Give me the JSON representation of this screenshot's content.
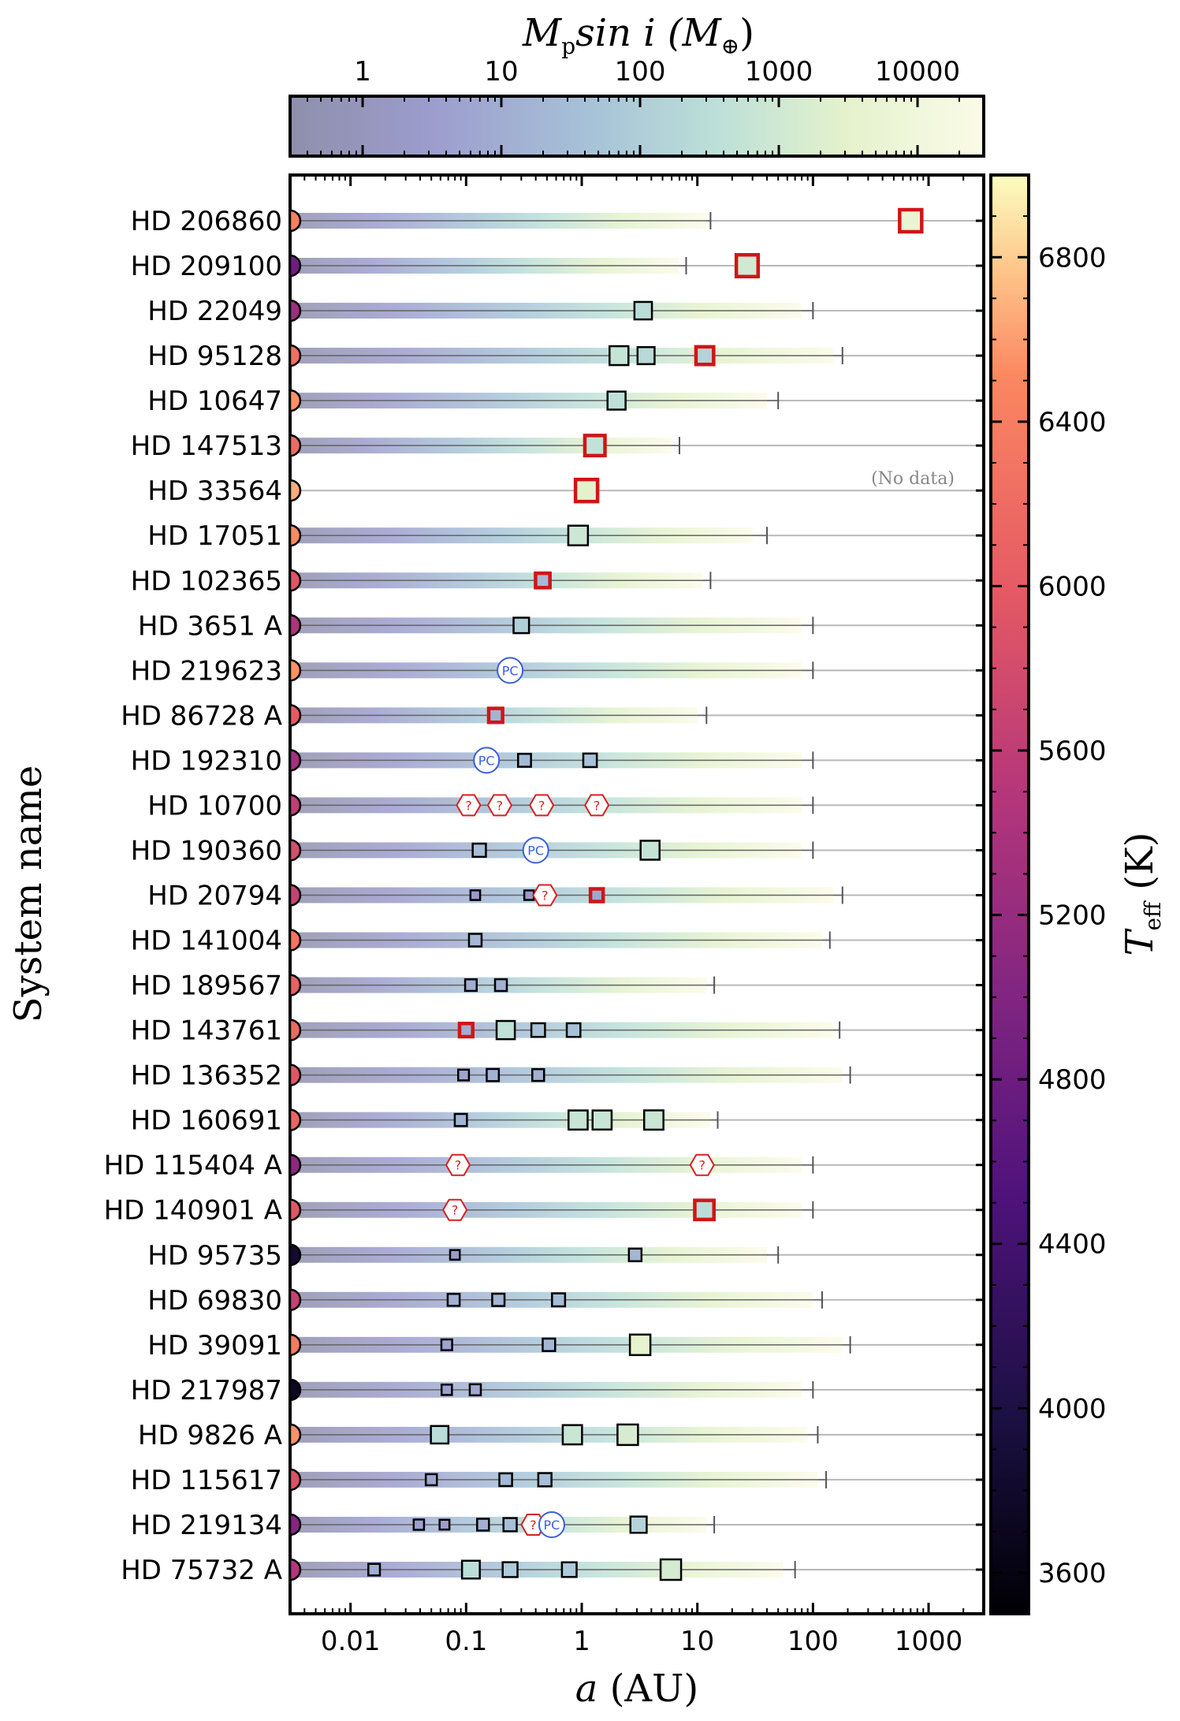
{
  "chart_data": {
    "type": "scatter",
    "title": "",
    "xlabel": "a (AU)",
    "ylabel": "System name",
    "x_scale": "log",
    "xlim": [
      0.003,
      3000
    ],
    "x_ticks": [
      {
        "value": 0.01,
        "label": "0.01"
      },
      {
        "value": 0.1,
        "label": "0.1"
      },
      {
        "value": 1,
        "label": "1"
      },
      {
        "value": 10,
        "label": "10"
      },
      {
        "value": 100,
        "label": "100"
      },
      {
        "value": 1000,
        "label": "1000"
      }
    ],
    "mass_colorbar": {
      "label": "M_p sin i (M_⊕)",
      "label_main": "M",
      "label_sub": "p",
      "label_rest": "sin i (M",
      "label_sym": "⊕",
      "label_end": ")",
      "scale": "log",
      "range": [
        0.3,
        30000
      ],
      "ticks": [
        {
          "value": 1,
          "label": "1"
        },
        {
          "value": 10,
          "label": "10"
        },
        {
          "value": 100,
          "label": "100"
        },
        {
          "value": 1000,
          "label": "1000"
        },
        {
          "value": 10000,
          "label": "10000"
        }
      ],
      "colors": [
        "#8f8fab",
        "#9c9ccd",
        "#a8c5d8",
        "#bde0d8",
        "#e4f2cc",
        "#fbfbe8"
      ]
    },
    "teff_colorbar": {
      "label": "T_eff (K)",
      "label_main": "T",
      "label_sub": "eff",
      "label_rest": " (K)",
      "range": [
        3500,
        7000
      ],
      "ticks": [
        {
          "value": 3600,
          "label": "3600"
        },
        {
          "value": 4000,
          "label": "4000"
        },
        {
          "value": 4400,
          "label": "4400"
        },
        {
          "value": 4800,
          "label": "4800"
        },
        {
          "value": 5200,
          "label": "5200"
        },
        {
          "value": 5600,
          "label": "5600"
        },
        {
          "value": 6000,
          "label": "6000"
        },
        {
          "value": 6400,
          "label": "6400"
        },
        {
          "value": 6800,
          "label": "6800"
        }
      ]
    },
    "legend_note": "(No data)",
    "marker_labels": {
      "pc": "PC",
      "unconfirmed": "?"
    },
    "systems": [
      {
        "name": "HD 206860",
        "teff": 6060,
        "bar_end": 12,
        "line_end": 13,
        "planets": [
          {
            "a": 700,
            "mass": 5000,
            "type": "imaged"
          }
        ]
      },
      {
        "name": "HD 209100",
        "teff": 4650,
        "bar_end": 7,
        "line_end": 8,
        "planets": [
          {
            "a": 27,
            "mass": 1000,
            "type": "imaged"
          }
        ]
      },
      {
        "name": "HD 22049",
        "teff": 5050,
        "bar_end": 80,
        "line_end": 100,
        "planets": [
          {
            "a": 3.4,
            "mass": 220,
            "type": "rv"
          }
        ]
      },
      {
        "name": "HD 95128",
        "teff": 5900,
        "bar_end": 150,
        "line_end": 180,
        "planets": [
          {
            "a": 2.1,
            "mass": 480,
            "type": "rv"
          },
          {
            "a": 3.6,
            "mass": 170,
            "type": "rv"
          },
          {
            "a": 11.6,
            "mass": 100,
            "type": "imaged"
          }
        ]
      },
      {
        "name": "HD 10647",
        "teff": 6200,
        "bar_end": 40,
        "line_end": 50,
        "planets": [
          {
            "a": 2.0,
            "mass": 300,
            "type": "rv"
          }
        ]
      },
      {
        "name": "HD 147513",
        "teff": 5850,
        "bar_end": 6,
        "line_end": 7,
        "planets": [
          {
            "a": 1.3,
            "mass": 400,
            "type": "imaged"
          }
        ]
      },
      {
        "name": "HD 33564",
        "teff": 6400,
        "bar_end": null,
        "line_end": null,
        "nodata": true,
        "planets": [
          {
            "a": 1.1,
            "mass": 2900,
            "type": "imaged"
          }
        ]
      },
      {
        "name": "HD 17051",
        "teff": 6150,
        "bar_end": 30,
        "line_end": 40,
        "planets": [
          {
            "a": 0.93,
            "mass": 730,
            "type": "rv"
          }
        ]
      },
      {
        "name": "HD 102365",
        "teff": 5630,
        "bar_end": 11,
        "line_end": 13,
        "planets": [
          {
            "a": 0.46,
            "mass": 16,
            "type": "imaged"
          }
        ]
      },
      {
        "name": "HD 3651 A",
        "teff": 5200,
        "bar_end": 80,
        "line_end": 100,
        "planets": [
          {
            "a": 0.3,
            "mass": 70,
            "type": "rv"
          }
        ]
      },
      {
        "name": "HD 219623",
        "teff": 6200,
        "bar_end": 80,
        "line_end": 100,
        "planets": [
          {
            "a": 0.24,
            "mass": 50,
            "type": "pc"
          }
        ]
      },
      {
        "name": "HD 86728 A",
        "teff": 5700,
        "bar_end": 10,
        "line_end": 12,
        "planets": [
          {
            "a": 0.18,
            "mass": 12,
            "type": "imaged"
          }
        ]
      },
      {
        "name": "HD 192310",
        "teff": 5100,
        "bar_end": 80,
        "line_end": 100,
        "planets": [
          {
            "a": 0.15,
            "mass": 10,
            "type": "pc"
          },
          {
            "a": 0.32,
            "mass": 17,
            "type": "rv"
          },
          {
            "a": 1.18,
            "mass": 24,
            "type": "rv"
          }
        ]
      },
      {
        "name": "HD 10700",
        "teff": 5350,
        "bar_end": 80,
        "line_end": 100,
        "planets": [
          {
            "a": 0.105,
            "mass": 2,
            "type": "unconfirmed"
          },
          {
            "a": 0.195,
            "mass": 2,
            "type": "unconfirmed"
          },
          {
            "a": 0.45,
            "mass": 4,
            "type": "unconfirmed"
          },
          {
            "a": 1.35,
            "mass": 4,
            "type": "unconfirmed"
          }
        ]
      },
      {
        "name": "HD 190360",
        "teff": 5550,
        "bar_end": 80,
        "line_end": 100,
        "planets": [
          {
            "a": 0.13,
            "mass": 20,
            "type": "rv"
          },
          {
            "a": 0.4,
            "mass": 50,
            "type": "pc"
          },
          {
            "a": 3.9,
            "mass": 500,
            "type": "rv"
          }
        ]
      },
      {
        "name": "HD 20794",
        "teff": 5400,
        "bar_end": 150,
        "line_end": 180,
        "planets": [
          {
            "a": 0.12,
            "mass": 2.7,
            "type": "rv"
          },
          {
            "a": 0.35,
            "mass": 2.5,
            "type": "rv"
          },
          {
            "a": 0.48,
            "mass": 2,
            "type": "unconfirmed"
          },
          {
            "a": 1.35,
            "mass": 6,
            "type": "imaged"
          }
        ]
      },
      {
        "name": "HD 141004",
        "teff": 5950,
        "bar_end": 120,
        "line_end": 140,
        "planets": [
          {
            "a": 0.12,
            "mass": 14,
            "type": "rv"
          }
        ]
      },
      {
        "name": "HD 189567",
        "teff": 5750,
        "bar_end": 12,
        "line_end": 14,
        "planets": [
          {
            "a": 0.11,
            "mass": 8,
            "type": "rv"
          },
          {
            "a": 0.2,
            "mass": 9,
            "type": "rv"
          }
        ]
      },
      {
        "name": "HD 143761",
        "teff": 5850,
        "bar_end": 150,
        "line_end": 170,
        "planets": [
          {
            "a": 0.1,
            "mass": 8,
            "type": "imaged"
          },
          {
            "a": 0.22,
            "mass": 330,
            "type": "rv"
          },
          {
            "a": 0.42,
            "mass": 25,
            "type": "rv"
          },
          {
            "a": 0.85,
            "mass": 25,
            "type": "rv"
          }
        ]
      },
      {
        "name": "HD 136352",
        "teff": 5650,
        "bar_end": 180,
        "line_end": 210,
        "planets": [
          {
            "a": 0.095,
            "mass": 5,
            "type": "rv"
          },
          {
            "a": 0.17,
            "mass": 11,
            "type": "rv"
          },
          {
            "a": 0.42,
            "mass": 9,
            "type": "rv"
          }
        ]
      },
      {
        "name": "HD 160691",
        "teff": 5800,
        "bar_end": 13,
        "line_end": 15,
        "planets": [
          {
            "a": 0.09,
            "mass": 11,
            "type": "rv"
          },
          {
            "a": 0.93,
            "mass": 550,
            "type": "rv"
          },
          {
            "a": 1.5,
            "mass": 530,
            "type": "rv"
          },
          {
            "a": 4.2,
            "mass": 600,
            "type": "rv"
          }
        ]
      },
      {
        "name": "HD 115404 A",
        "teff": 4900,
        "bar_end": 80,
        "line_end": 100,
        "planets": [
          {
            "a": 0.085,
            "mass": 4,
            "type": "unconfirmed"
          },
          {
            "a": 11,
            "mass": 4,
            "type": "unconfirmed"
          }
        ]
      },
      {
        "name": "HD 140901 A",
        "teff": 5650,
        "bar_end": 80,
        "line_end": 100,
        "planets": [
          {
            "a": 0.08,
            "mass": 4,
            "type": "unconfirmed"
          },
          {
            "a": 11.5,
            "mass": 230,
            "type": "imaged"
          }
        ]
      },
      {
        "name": "HD 95735",
        "teff": 3800,
        "bar_end": 40,
        "line_end": 50,
        "planets": [
          {
            "a": 0.08,
            "mass": 2.7,
            "type": "rv"
          },
          {
            "a": 2.9,
            "mass": 14,
            "type": "rv"
          }
        ]
      },
      {
        "name": "HD 69830",
        "teff": 5400,
        "bar_end": 100,
        "line_end": 120,
        "planets": [
          {
            "a": 0.078,
            "mass": 10,
            "type": "rv"
          },
          {
            "a": 0.19,
            "mass": 12,
            "type": "rv"
          },
          {
            "a": 0.63,
            "mass": 18,
            "type": "rv"
          }
        ]
      },
      {
        "name": "HD 39091",
        "teff": 6000,
        "bar_end": 180,
        "line_end": 210,
        "planets": [
          {
            "a": 0.068,
            "mass": 5,
            "type": "rv"
          },
          {
            "a": 0.52,
            "mass": 13,
            "type": "rv"
          },
          {
            "a": 3.2,
            "mass": 3500,
            "type": "rv"
          }
        ]
      },
      {
        "name": "HD 217987",
        "teff": 3700,
        "bar_end": 80,
        "line_end": 100,
        "planets": [
          {
            "a": 0.068,
            "mass": 4,
            "type": "rv"
          },
          {
            "a": 0.12,
            "mass": 6,
            "type": "rv"
          }
        ]
      },
      {
        "name": "HD 9826 A",
        "teff": 6200,
        "bar_end": 90,
        "line_end": 110,
        "planets": [
          {
            "a": 0.059,
            "mass": 220,
            "type": "rv"
          },
          {
            "a": 0.83,
            "mass": 600,
            "type": "rv"
          },
          {
            "a": 2.5,
            "mass": 1300,
            "type": "rv"
          }
        ]
      },
      {
        "name": "HD 115617",
        "teff": 5600,
        "bar_end": 110,
        "line_end": 130,
        "planets": [
          {
            "a": 0.05,
            "mass": 6,
            "type": "rv"
          },
          {
            "a": 0.22,
            "mass": 15,
            "type": "rv"
          },
          {
            "a": 0.48,
            "mass": 20,
            "type": "rv"
          }
        ]
      },
      {
        "name": "HD 219134",
        "teff": 4850,
        "bar_end": 12,
        "line_end": 14,
        "planets": [
          {
            "a": 0.039,
            "mass": 4,
            "type": "rv"
          },
          {
            "a": 0.065,
            "mass": 3,
            "type": "rv"
          },
          {
            "a": 0.14,
            "mass": 9,
            "type": "rv"
          },
          {
            "a": 0.24,
            "mass": 20,
            "type": "rv"
          },
          {
            "a": 0.38,
            "mass": 2,
            "type": "unconfirmed"
          },
          {
            "a": 0.55,
            "mass": 20,
            "type": "pc"
          },
          {
            "a": 3.1,
            "mass": 110,
            "type": "rv"
          }
        ]
      },
      {
        "name": "HD 75732 A",
        "teff": 5250,
        "bar_end": 55,
        "line_end": 70,
        "planets": [
          {
            "a": 0.016,
            "mass": 8,
            "type": "rv"
          },
          {
            "a": 0.11,
            "mass": 260,
            "type": "rv"
          },
          {
            "a": 0.24,
            "mass": 50,
            "type": "rv"
          },
          {
            "a": 0.78,
            "mass": 45,
            "type": "rv"
          },
          {
            "a": 5.9,
            "mass": 1200,
            "type": "rv"
          }
        ]
      }
    ]
  }
}
